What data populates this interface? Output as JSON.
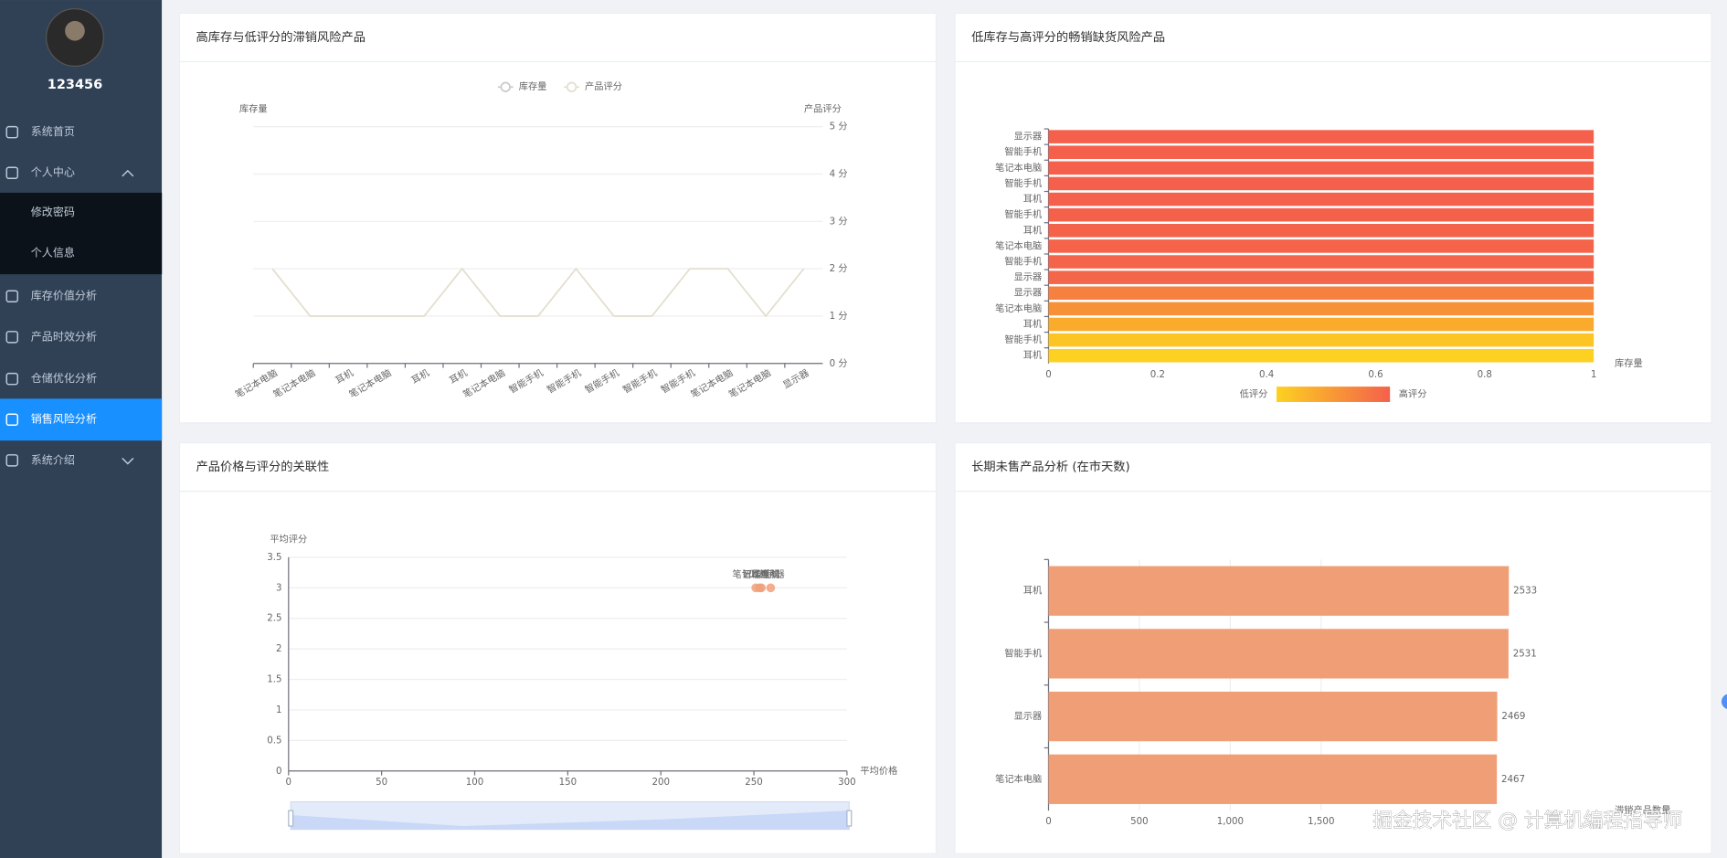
{
  "sidebar": {
    "username": "123456",
    "menu": [
      {
        "label": "系统首页"
      },
      {
        "label": "个人中心",
        "expanded": true
      },
      {
        "label": "修改密码",
        "sub": true
      },
      {
        "label": "个人信息",
        "sub": true
      },
      {
        "label": "库存价值分析"
      },
      {
        "label": "产品时效分析"
      },
      {
        "label": "仓储优化分析"
      },
      {
        "label": "销售风险分析",
        "active": true
      },
      {
        "label": "系统介绍",
        "expanded": false
      }
    ]
  },
  "watermark": "掘金技术社区 @ 计算机编程指导师",
  "chart_data": [
    {
      "type": "line",
      "title": "高库存与低评分的滞销风险产品",
      "y_axis_label": "库存量",
      "y2_axis_label": "产品评分",
      "categories": [
        "笔记本电脑",
        "笔记本电脑",
        "耳机",
        "笔记本电脑",
        "耳机",
        "耳机",
        "笔记本电脑",
        "智能手机",
        "智能手机",
        "智能手机",
        "智能手机",
        "智能手机",
        "笔记本电脑",
        "笔记本电脑",
        "显示器"
      ],
      "series": [
        {
          "name": "库存量",
          "color": "#cccccc",
          "hidden": true,
          "values": [
            null,
            null,
            null,
            null,
            null,
            null,
            null,
            null,
            null,
            null,
            null,
            null,
            null,
            null,
            null
          ]
        },
        {
          "name": "产品评分",
          "color": "#e3dfcf",
          "axis": "y2",
          "values": [
            2,
            1,
            1,
            1,
            1,
            2,
            1,
            1,
            2,
            1,
            1,
            2,
            2,
            1,
            2
          ]
        }
      ],
      "y2lim": [
        0,
        5
      ],
      "y2ticks": [
        {
          "value": 0,
          "label": "0 分"
        },
        {
          "value": 1,
          "label": "1 分"
        },
        {
          "value": 2,
          "label": "2 分"
        },
        {
          "value": 3,
          "label": "3 分"
        },
        {
          "value": 4,
          "label": "4 分"
        },
        {
          "value": 5,
          "label": "5 分"
        }
      ],
      "grid": true,
      "legend": "top"
    },
    {
      "type": "bar",
      "orientation": "horizontal",
      "title": "低库存与高评分的畅销缺货风险产品",
      "x_axis_label": "库存量",
      "categories": [
        "显示器",
        "智能手机",
        "笔记本电脑",
        "智能手机",
        "耳机",
        "智能手机",
        "耳机",
        "笔记本电脑",
        "智能手机",
        "显示器",
        "显示器",
        "笔记本电脑",
        "耳机",
        "智能手机",
        "耳机"
      ],
      "values": [
        1,
        1,
        1,
        1,
        1,
        1,
        1,
        1,
        1,
        1,
        1,
        1,
        1,
        1,
        1
      ],
      "colors": [
        "#f4604b",
        "#f4604b",
        "#f4604b",
        "#f4604b",
        "#f4604b",
        "#f4614b",
        "#f4624a",
        "#f4634a",
        "#f4644a",
        "#f46649",
        "#f5803f",
        "#f79137",
        "#fbab2b",
        "#fcc523",
        "#fdd121"
      ],
      "xlim": [
        0,
        1
      ],
      "xticks": [
        0,
        0.2,
        0.4,
        0.6,
        0.8,
        1
      ],
      "grid": false,
      "visual_map": {
        "low_label": "低评分",
        "high_label": "高评分",
        "colors": [
          "#fdd121",
          "#f4604b"
        ]
      }
    },
    {
      "type": "scatter",
      "title": "产品价格与评分的关联性",
      "x_axis_label": "平均价格",
      "y_axis_label": "平均评分",
      "labels": [
        "笔记本电脑",
        "耳机",
        "智能手机",
        "显示器"
      ],
      "x": [
        251,
        253,
        254,
        259
      ],
      "values": [
        3,
        3,
        3,
        3
      ],
      "color": "#f0a07a",
      "xlim": [
        0,
        300
      ],
      "xticks": [
        0,
        50,
        100,
        150,
        200,
        250,
        300
      ],
      "ylim": [
        0,
        3.5
      ],
      "yticks": [
        0,
        0.5,
        1,
        1.5,
        2,
        2.5,
        3,
        3.5
      ],
      "grid": true,
      "data_zoom": true
    },
    {
      "type": "bar",
      "orientation": "horizontal",
      "title": "长期未售产品分析 (在市天数)",
      "x_axis_label": "滞销产品数量",
      "categories": [
        "耳机",
        "智能手机",
        "显示器",
        "笔记本电脑"
      ],
      "values": [
        2533,
        2531,
        2469,
        2467
      ],
      "color": "#f09e76",
      "xlim": [
        0,
        3000
      ],
      "xticks": [
        0,
        500,
        {
          "value": 1000,
          "label": "1,000"
        },
        {
          "value": 1500,
          "label": "1,500"
        }
      ],
      "grid": true,
      "show_values": true
    }
  ]
}
